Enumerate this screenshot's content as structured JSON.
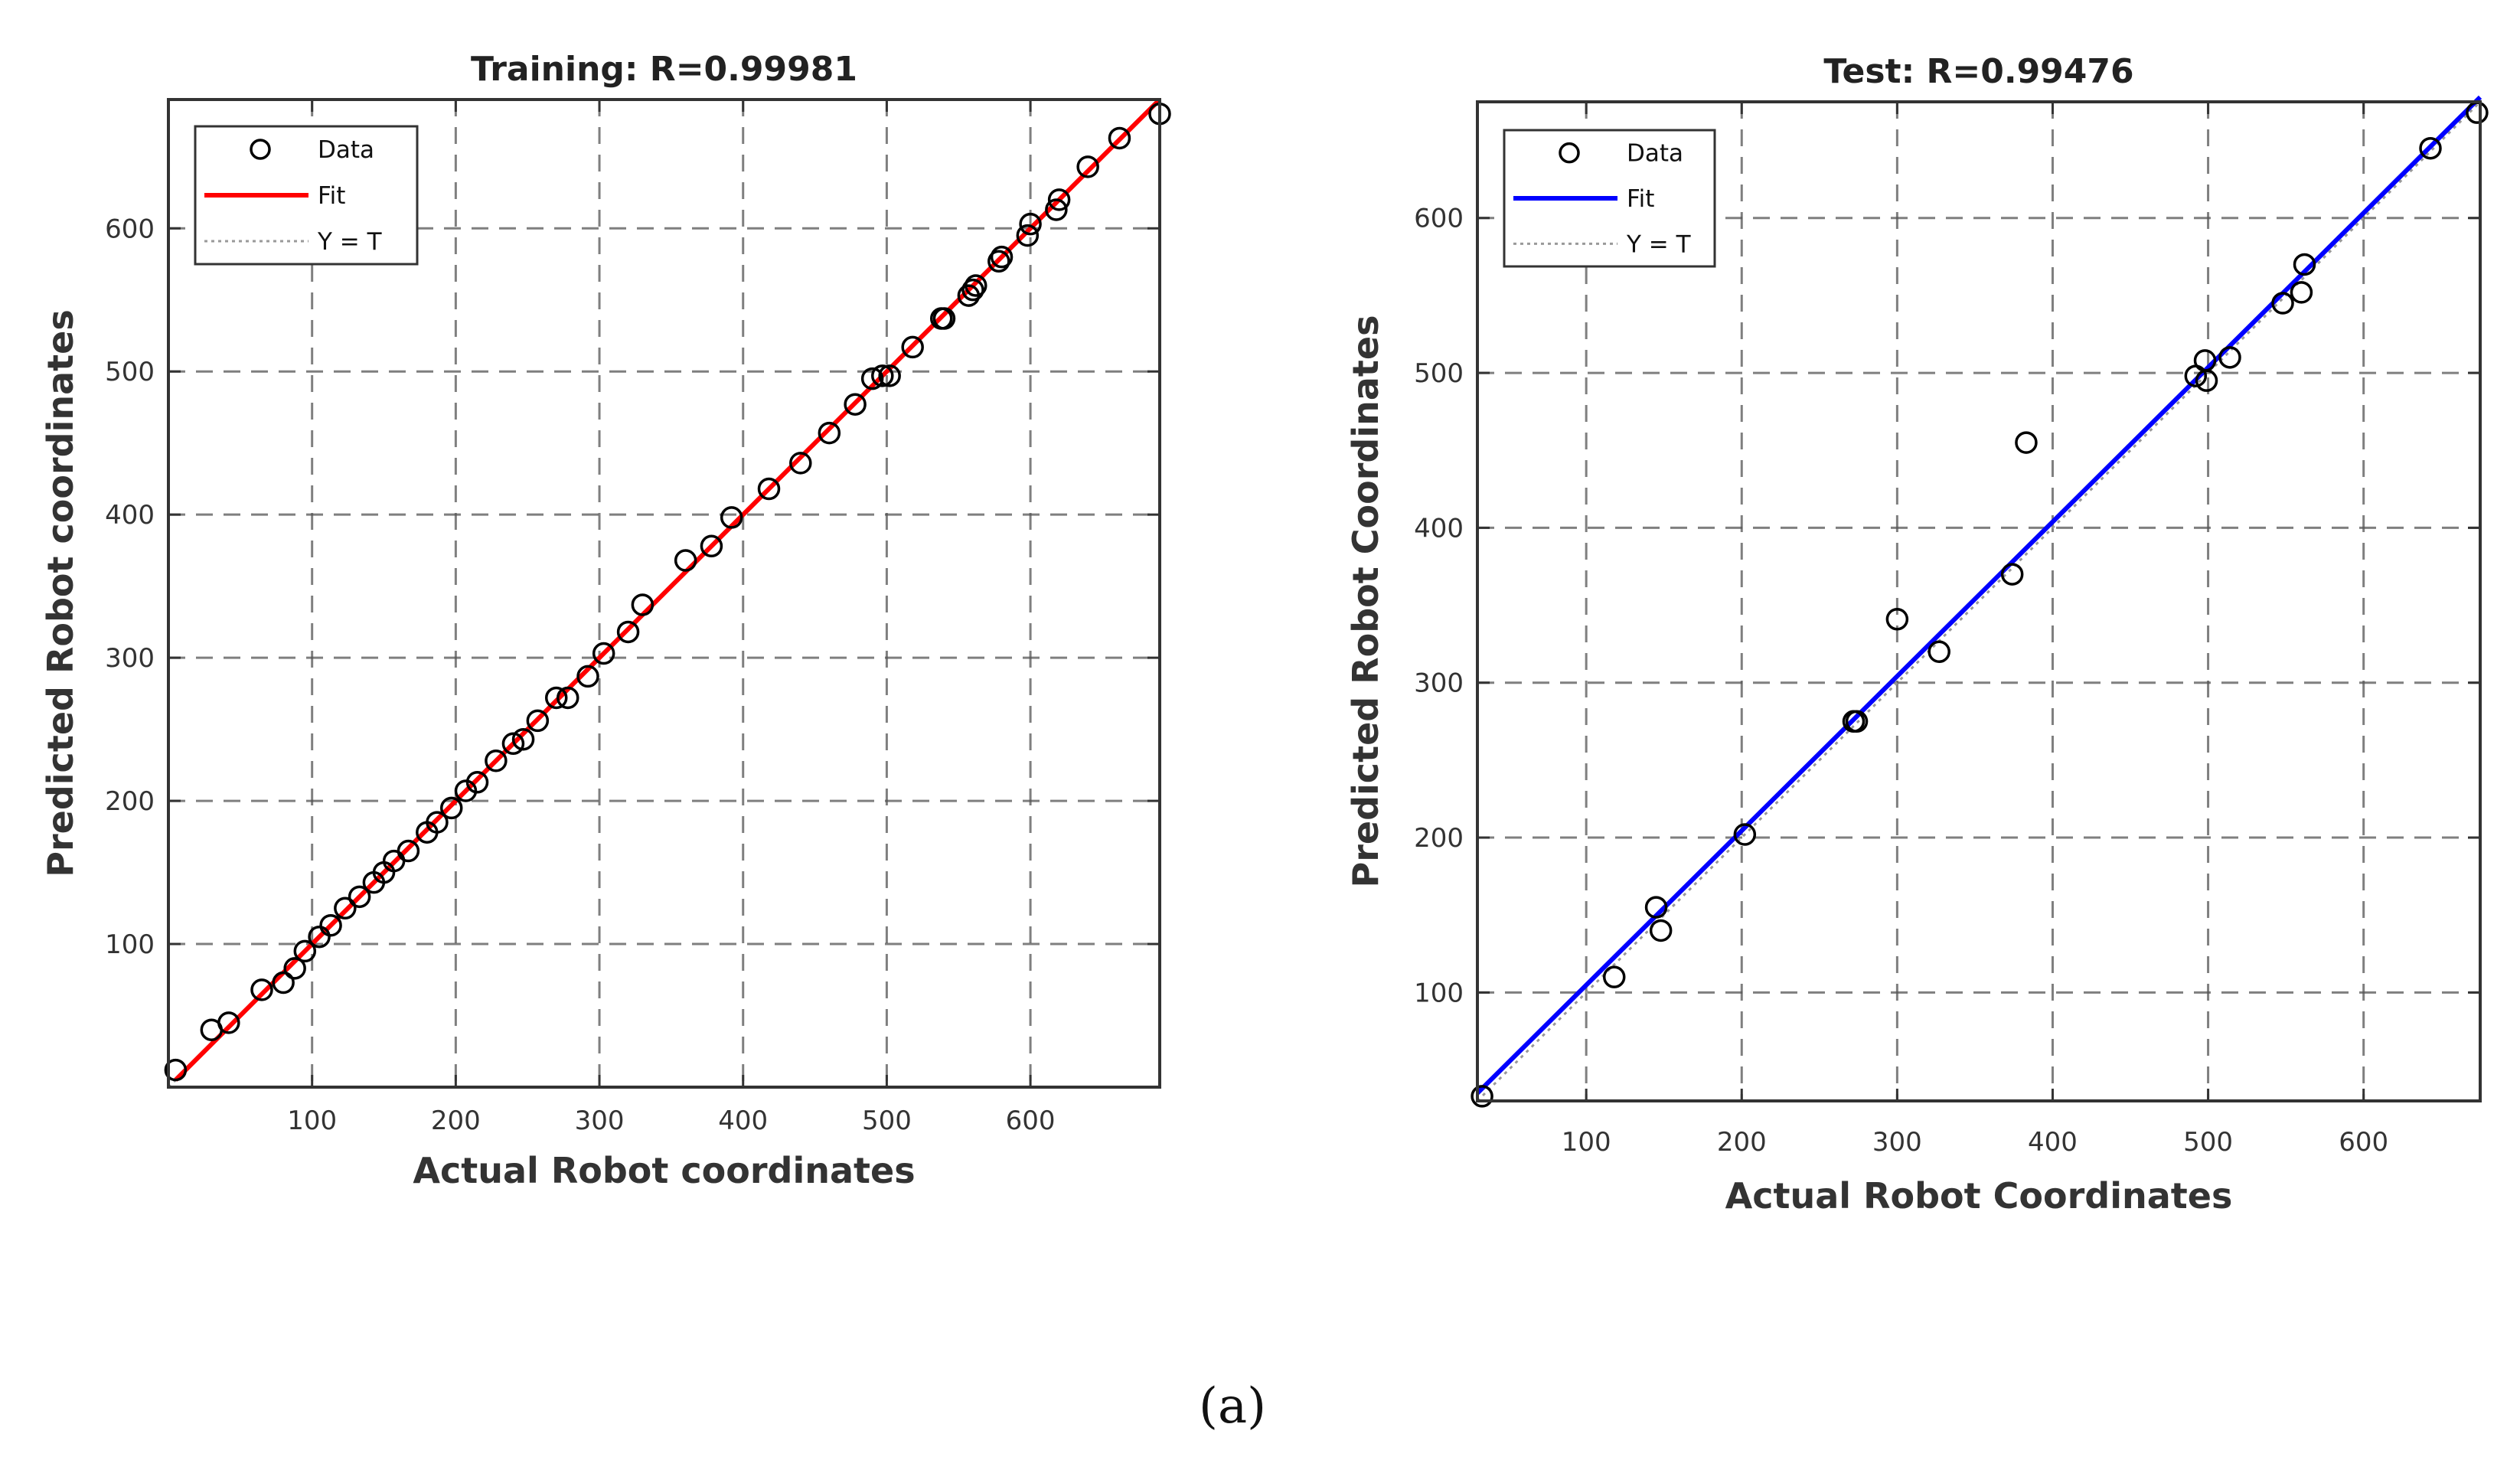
{
  "caption": "(a)",
  "chart_data": [
    {
      "type": "scatter",
      "title": "Training: R=0.99981",
      "xlabel": "Actual Robot coordinates",
      "ylabel": "Predicted Robot coordinates",
      "xlim": [
        0,
        690
      ],
      "ylim": [
        0,
        690
      ],
      "xticks": [
        100,
        200,
        300,
        400,
        500,
        600
      ],
      "yticks": [
        100,
        200,
        300,
        400,
        500,
        600
      ],
      "grid": true,
      "legend_position": "top-left",
      "legend": [
        "Data",
        "Fit",
        "Y = T"
      ],
      "colors": {
        "fit": "#ff0000",
        "data": "#000000",
        "identity": "#999999"
      },
      "fit_line": {
        "x": [
          5,
          690
        ],
        "y": [
          5,
          690
        ]
      },
      "x": [
        5,
        30,
        42,
        65,
        80,
        88,
        95,
        105,
        113,
        123,
        133,
        143,
        150,
        157,
        167,
        180,
        187,
        197,
        207,
        215,
        228,
        240,
        247,
        257,
        270,
        278,
        292,
        303,
        320,
        330,
        360,
        378,
        392,
        418,
        440,
        460,
        478,
        490,
        497,
        502,
        518,
        538,
        540,
        557,
        560,
        562,
        578,
        580,
        598,
        600,
        618,
        620,
        640,
        662,
        690
      ],
      "y": [
        12,
        40,
        45,
        68,
        73,
        83,
        95,
        105,
        113,
        125,
        133,
        143,
        150,
        158,
        165,
        178,
        185,
        195,
        207,
        213,
        228,
        240,
        243,
        256,
        272,
        272,
        287,
        303,
        318,
        337,
        368,
        378,
        398,
        418,
        436,
        457,
        477,
        495,
        497,
        497,
        517,
        537,
        537,
        553,
        557,
        560,
        577,
        580,
        595,
        603,
        613,
        620,
        643,
        663,
        680
      ]
    },
    {
      "type": "scatter",
      "title": "Test: R=0.99476",
      "xlabel": "Actual Robot Coordinates",
      "ylabel": "Predicted Robot Coordinates",
      "xlim": [
        30,
        675
      ],
      "ylim": [
        30,
        675
      ],
      "xticks": [
        100,
        200,
        300,
        400,
        500,
        600
      ],
      "yticks": [
        100,
        200,
        300,
        400,
        500,
        600
      ],
      "grid": true,
      "legend_position": "top-left",
      "legend": [
        "Data",
        "Fit",
        "Y = T"
      ],
      "colors": {
        "fit": "#0000ff",
        "data": "#000000",
        "identity": "#999999"
      },
      "fit_line": {
        "x": [
          30,
          675
        ],
        "y": [
          35,
          678
        ]
      },
      "x": [
        33,
        118,
        145,
        148,
        202,
        272,
        274,
        300,
        327,
        374,
        383,
        492,
        498,
        499,
        514,
        548,
        560,
        562,
        643,
        673
      ],
      "y": [
        33,
        110,
        155,
        140,
        202,
        275,
        275,
        341,
        320,
        370,
        455,
        498,
        508,
        495,
        510,
        545,
        552,
        570,
        645,
        668
      ]
    }
  ]
}
